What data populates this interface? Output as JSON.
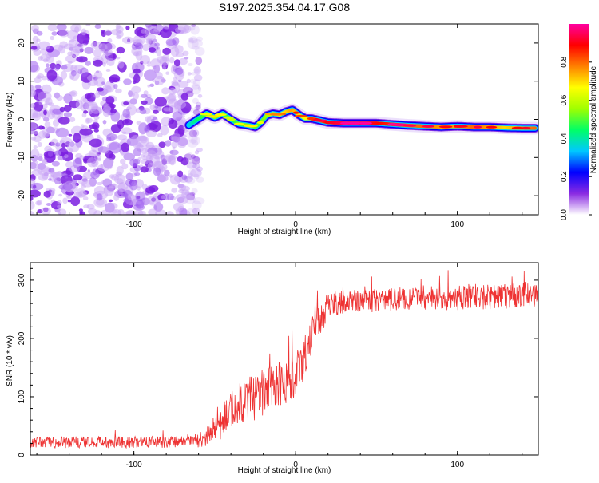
{
  "title": "S197.2025.354.04.17.G08",
  "chart_data": [
    {
      "type": "heatmap",
      "name": "spectrogram",
      "xlabel": "Height of straight line (km)",
      "ylabel": "Frequency (Hz)",
      "xlim": [
        -164,
        150
      ],
      "ylim": [
        -25,
        25
      ],
      "x_ticks": [
        -100,
        0,
        100
      ],
      "y_ticks": [
        -20,
        -10,
        0,
        10,
        20
      ],
      "colorbar": {
        "label": "Normalized spectral amplitude",
        "range": [
          0,
          1
        ],
        "ticks": [
          "0.0",
          "0.2",
          "0.4",
          "0.6",
          "0.8"
        ],
        "tick_values": [
          0,
          0.2,
          0.4,
          0.6,
          0.8
        ],
        "colors": [
          "#ffffff",
          "#8a2be2",
          "#0000ff",
          "#00c8ff",
          "#00ff66",
          "#a0ff00",
          "#ffff00",
          "#ff8000",
          "#ff0000",
          "#ff00a0"
        ]
      },
      "noise_region": {
        "x_range": [
          -164,
          -64
        ],
        "y_range": [
          -25,
          25
        ],
        "amplitude_range": [
          0.0,
          0.15
        ]
      },
      "signal_track": {
        "x": [
          -66,
          -60,
          -55,
          -50,
          -45,
          -40,
          -35,
          -30,
          -25,
          -22,
          -18,
          -14,
          -10,
          -6,
          -2,
          2,
          6,
          10,
          15,
          20,
          30,
          40,
          50,
          60,
          70,
          80,
          90,
          100,
          110,
          120,
          130,
          140,
          148
        ],
        "y": [
          -1.5,
          0.2,
          1.5,
          0.5,
          1.5,
          0,
          -1.2,
          -1.5,
          -2,
          -1,
          1,
          1.5,
          1.2,
          2,
          2.5,
          1.2,
          0.2,
          0.2,
          -0.3,
          -0.8,
          -1,
          -1,
          -1,
          -1.3,
          -1.6,
          -1.8,
          -2,
          -1.8,
          -2,
          -2,
          -2.2,
          -2.3,
          -2.3
        ],
        "amplitude": [
          0.35,
          0.45,
          0.5,
          0.55,
          0.5,
          0.45,
          0.5,
          0.55,
          0.5,
          0.5,
          0.55,
          0.6,
          0.65,
          0.7,
          0.75,
          0.7,
          0.65,
          0.7,
          0.8,
          0.9,
          0.95,
          0.95,
          0.9,
          0.85,
          0.8,
          0.8,
          0.75,
          0.75,
          0.8,
          0.75,
          0.7,
          0.75,
          0.8
        ]
      }
    },
    {
      "type": "line",
      "name": "snr",
      "xlabel": "Height of straight line (km)",
      "ylabel": "SNR (10 * v/v)",
      "xlim": [
        -164,
        150
      ],
      "ylim": [
        0,
        330
      ],
      "x_ticks": [
        -100,
        0,
        100
      ],
      "y_ticks": [
        0,
        100,
        200,
        300
      ],
      "series": [
        {
          "name": "SNR",
          "color": "#ee3333",
          "x": [
            -164,
            -150,
            -130,
            -110,
            -90,
            -70,
            -60,
            -55,
            -50,
            -45,
            -40,
            -35,
            -30,
            -25,
            -20,
            -15,
            -10,
            -5,
            0,
            5,
            10,
            15,
            20,
            25,
            30,
            40,
            50,
            60,
            70,
            80,
            90,
            100,
            110,
            120,
            130,
            140,
            150
          ],
          "y": [
            22,
            22,
            22,
            22,
            22,
            23,
            25,
            32,
            45,
            60,
            75,
            88,
            95,
            100,
            108,
            115,
            120,
            125,
            135,
            165,
            205,
            235,
            252,
            260,
            262,
            265,
            265,
            268,
            268,
            270,
            270,
            270,
            272,
            270,
            272,
            274,
            275
          ],
          "spread": [
            10,
            10,
            10,
            10,
            10,
            10,
            12,
            18,
            25,
            30,
            35,
            40,
            40,
            40,
            40,
            40,
            40,
            40,
            40,
            35,
            30,
            28,
            25,
            22,
            20,
            20,
            20,
            20,
            22,
            22,
            22,
            22,
            22,
            22,
            22,
            22,
            22
          ]
        }
      ]
    }
  ]
}
